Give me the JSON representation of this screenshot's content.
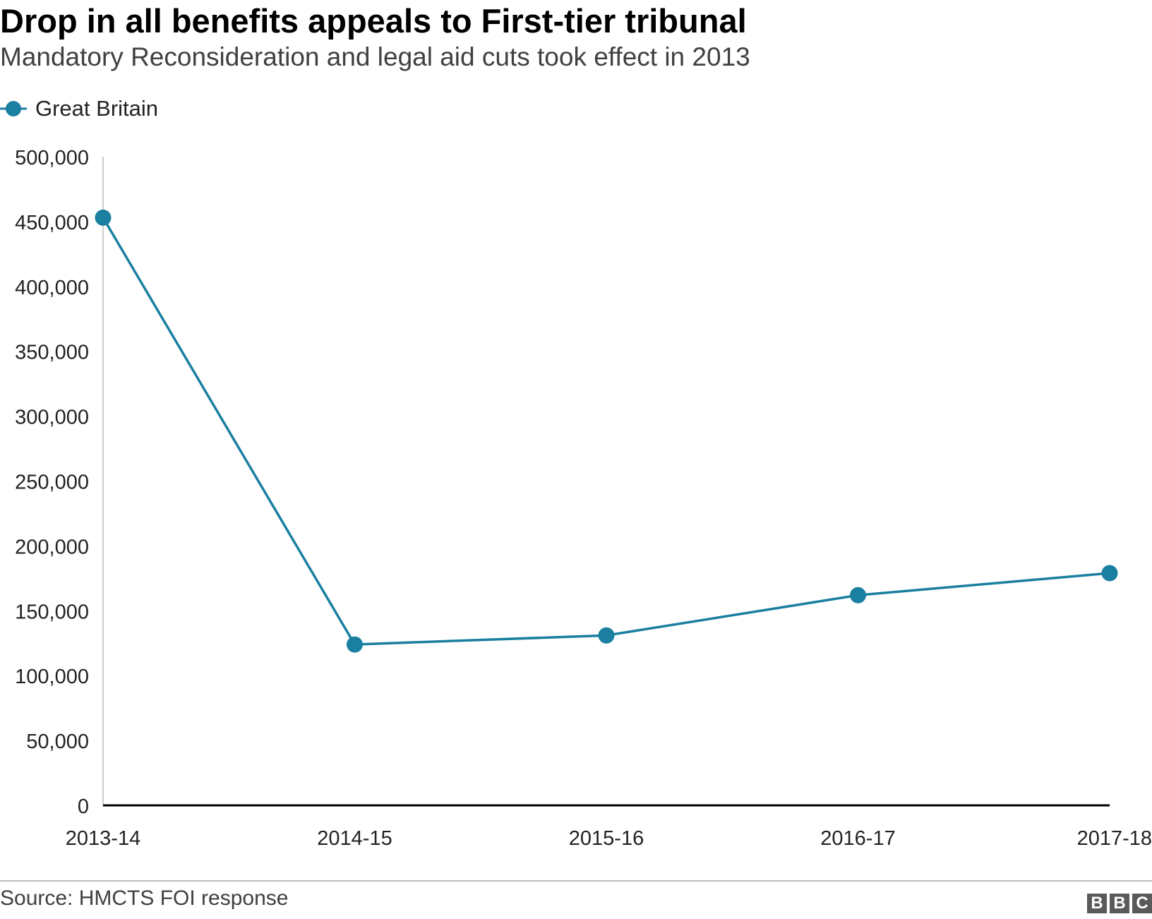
{
  "chart_data": {
    "type": "line",
    "title": "Drop in all benefits appeals to First-tier tribunal",
    "subtitle": "Mandatory Reconsideration and legal aid cuts took effect in 2013",
    "categories": [
      "2013-14",
      "2014-15",
      "2015-16",
      "2016-17",
      "2017-18"
    ],
    "series": [
      {
        "name": "Great Britain",
        "values": [
          453000,
          124000,
          131000,
          162000,
          179000
        ]
      }
    ],
    "ylim": [
      0,
      500000
    ],
    "yticks": [
      0,
      50000,
      100000,
      150000,
      200000,
      250000,
      300000,
      350000,
      400000,
      450000,
      500000
    ],
    "ytick_labels": [
      "0",
      "50,000",
      "100,000",
      "150,000",
      "200,000",
      "250,000",
      "300,000",
      "350,000",
      "400,000",
      "450,000",
      "500,000"
    ],
    "grid": false,
    "legend_position": "top-left",
    "colors": {
      "series": "#1a7fa0",
      "axis": "#000000",
      "y_axis_line": "#cccccc"
    }
  },
  "footer": {
    "source": "Source: HMCTS FOI response",
    "logo_letters": [
      "B",
      "B",
      "C"
    ]
  }
}
